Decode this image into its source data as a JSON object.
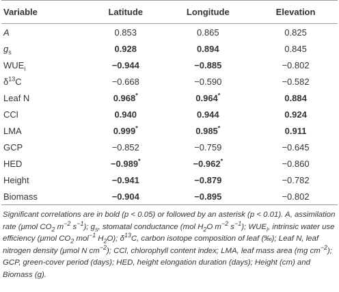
{
  "table": {
    "header": [
      "Variable",
      "Latitude",
      "Longitude",
      "Elevation"
    ],
    "rows": [
      {
        "variable": [
          {
            "text": "A",
            "italic": true
          }
        ],
        "values": [
          {
            "text": "0.853",
            "bold": false
          },
          {
            "text": "0.865",
            "bold": false
          },
          {
            "text": "0.825",
            "bold": false
          }
        ]
      },
      {
        "variable": [
          {
            "text": "g",
            "italic": true
          },
          {
            "text": "s",
            "script": "sub"
          }
        ],
        "values": [
          {
            "text": "0.928",
            "bold": true
          },
          {
            "text": "0.894",
            "bold": true
          },
          {
            "text": "0.845",
            "bold": false
          }
        ]
      },
      {
        "variable": [
          {
            "text": "WUE"
          },
          {
            "text": "i",
            "script": "sub"
          }
        ],
        "values": [
          {
            "text": "−0.944",
            "bold": true
          },
          {
            "text": "−0.885",
            "bold": true
          },
          {
            "text": "−0.802",
            "bold": false
          }
        ]
      },
      {
        "variable": [
          {
            "text": "δ"
          },
          {
            "text": "13",
            "script": "sup"
          },
          {
            "text": "C"
          }
        ],
        "values": [
          {
            "text": "−0.668",
            "bold": false
          },
          {
            "text": "−0.590",
            "bold": false
          },
          {
            "text": "−0.582",
            "bold": false
          }
        ]
      },
      {
        "variable": [
          {
            "text": "Leaf N"
          }
        ],
        "values": [
          {
            "text": "0.968",
            "bold": true,
            "note": "*"
          },
          {
            "text": "0.964",
            "bold": true,
            "note": "*"
          },
          {
            "text": "0.884",
            "bold": true
          }
        ]
      },
      {
        "variable": [
          {
            "text": "CCl"
          }
        ],
        "values": [
          {
            "text": "0.940",
            "bold": true
          },
          {
            "text": "0.944",
            "bold": true
          },
          {
            "text": "0.924",
            "bold": true
          }
        ]
      },
      {
        "variable": [
          {
            "text": "LMA"
          }
        ],
        "values": [
          {
            "text": "0.999",
            "bold": true,
            "note": "*"
          },
          {
            "text": "0.985",
            "bold": true,
            "note": "*"
          },
          {
            "text": "0.911",
            "bold": true
          }
        ]
      },
      {
        "variable": [
          {
            "text": "GCP"
          }
        ],
        "values": [
          {
            "text": "−0.852",
            "bold": false
          },
          {
            "text": "−0.759",
            "bold": false
          },
          {
            "text": "−0.645",
            "bold": false
          }
        ]
      },
      {
        "variable": [
          {
            "text": "HED"
          }
        ],
        "values": [
          {
            "text": "−0.989",
            "bold": true,
            "note": "*"
          },
          {
            "text": "−0.962",
            "bold": true,
            "note": "*"
          },
          {
            "text": "−0.860",
            "bold": false
          }
        ]
      },
      {
        "variable": [
          {
            "text": "Height"
          }
        ],
        "values": [
          {
            "text": "−0.941",
            "bold": true
          },
          {
            "text": "−0.879",
            "bold": true
          },
          {
            "text": "−0.782",
            "bold": false
          }
        ]
      },
      {
        "variable": [
          {
            "text": "Biomass"
          }
        ],
        "values": [
          {
            "text": "−0.904",
            "bold": true
          },
          {
            "text": "−0.895",
            "bold": true
          },
          {
            "text": "−0.802",
            "bold": false
          }
        ]
      }
    ],
    "footnote": [
      {
        "text": "Significant correlations are in bold (p < 0.05) or followed by an asterisk (p < 0.01). A, assimilation rate (μmol CO"
      },
      {
        "text": "2",
        "script": "sub"
      },
      {
        "text": " m"
      },
      {
        "text": "−2",
        "script": "sup"
      },
      {
        "text": " s"
      },
      {
        "text": "−1",
        "script": "sup"
      },
      {
        "text": "); g"
      },
      {
        "text": "s",
        "script": "sub"
      },
      {
        "text": ", stomatal conductance (mol H"
      },
      {
        "text": "2",
        "script": "sub"
      },
      {
        "text": "O m"
      },
      {
        "text": "−2",
        "script": "sup"
      },
      {
        "text": " s"
      },
      {
        "text": "−1",
        "script": "sup"
      },
      {
        "text": "); WUE"
      },
      {
        "text": "i",
        "script": "sub"
      },
      {
        "text": ", intrinsic water use efficiency (μmol CO"
      },
      {
        "text": "2",
        "script": "sub"
      },
      {
        "text": " mol"
      },
      {
        "text": "−1",
        "script": "sup"
      },
      {
        "text": " H"
      },
      {
        "text": "2",
        "script": "sub"
      },
      {
        "text": "O); δ"
      },
      {
        "text": "13",
        "script": "sup"
      },
      {
        "text": "C, carbon isotope composition of leaf (‰); Leaf N, leaf nitrogen density (μmol N cm"
      },
      {
        "text": "−2",
        "script": "sup"
      },
      {
        "text": "); CCl, chlorophyll content index; LMA, leaf mass area (mg cm"
      },
      {
        "text": "−2",
        "script": "sup"
      },
      {
        "text": "); GCP, green-cover period (days); HED, height elongation duration (days); Height (cm) and Biomass (g)."
      }
    ]
  }
}
